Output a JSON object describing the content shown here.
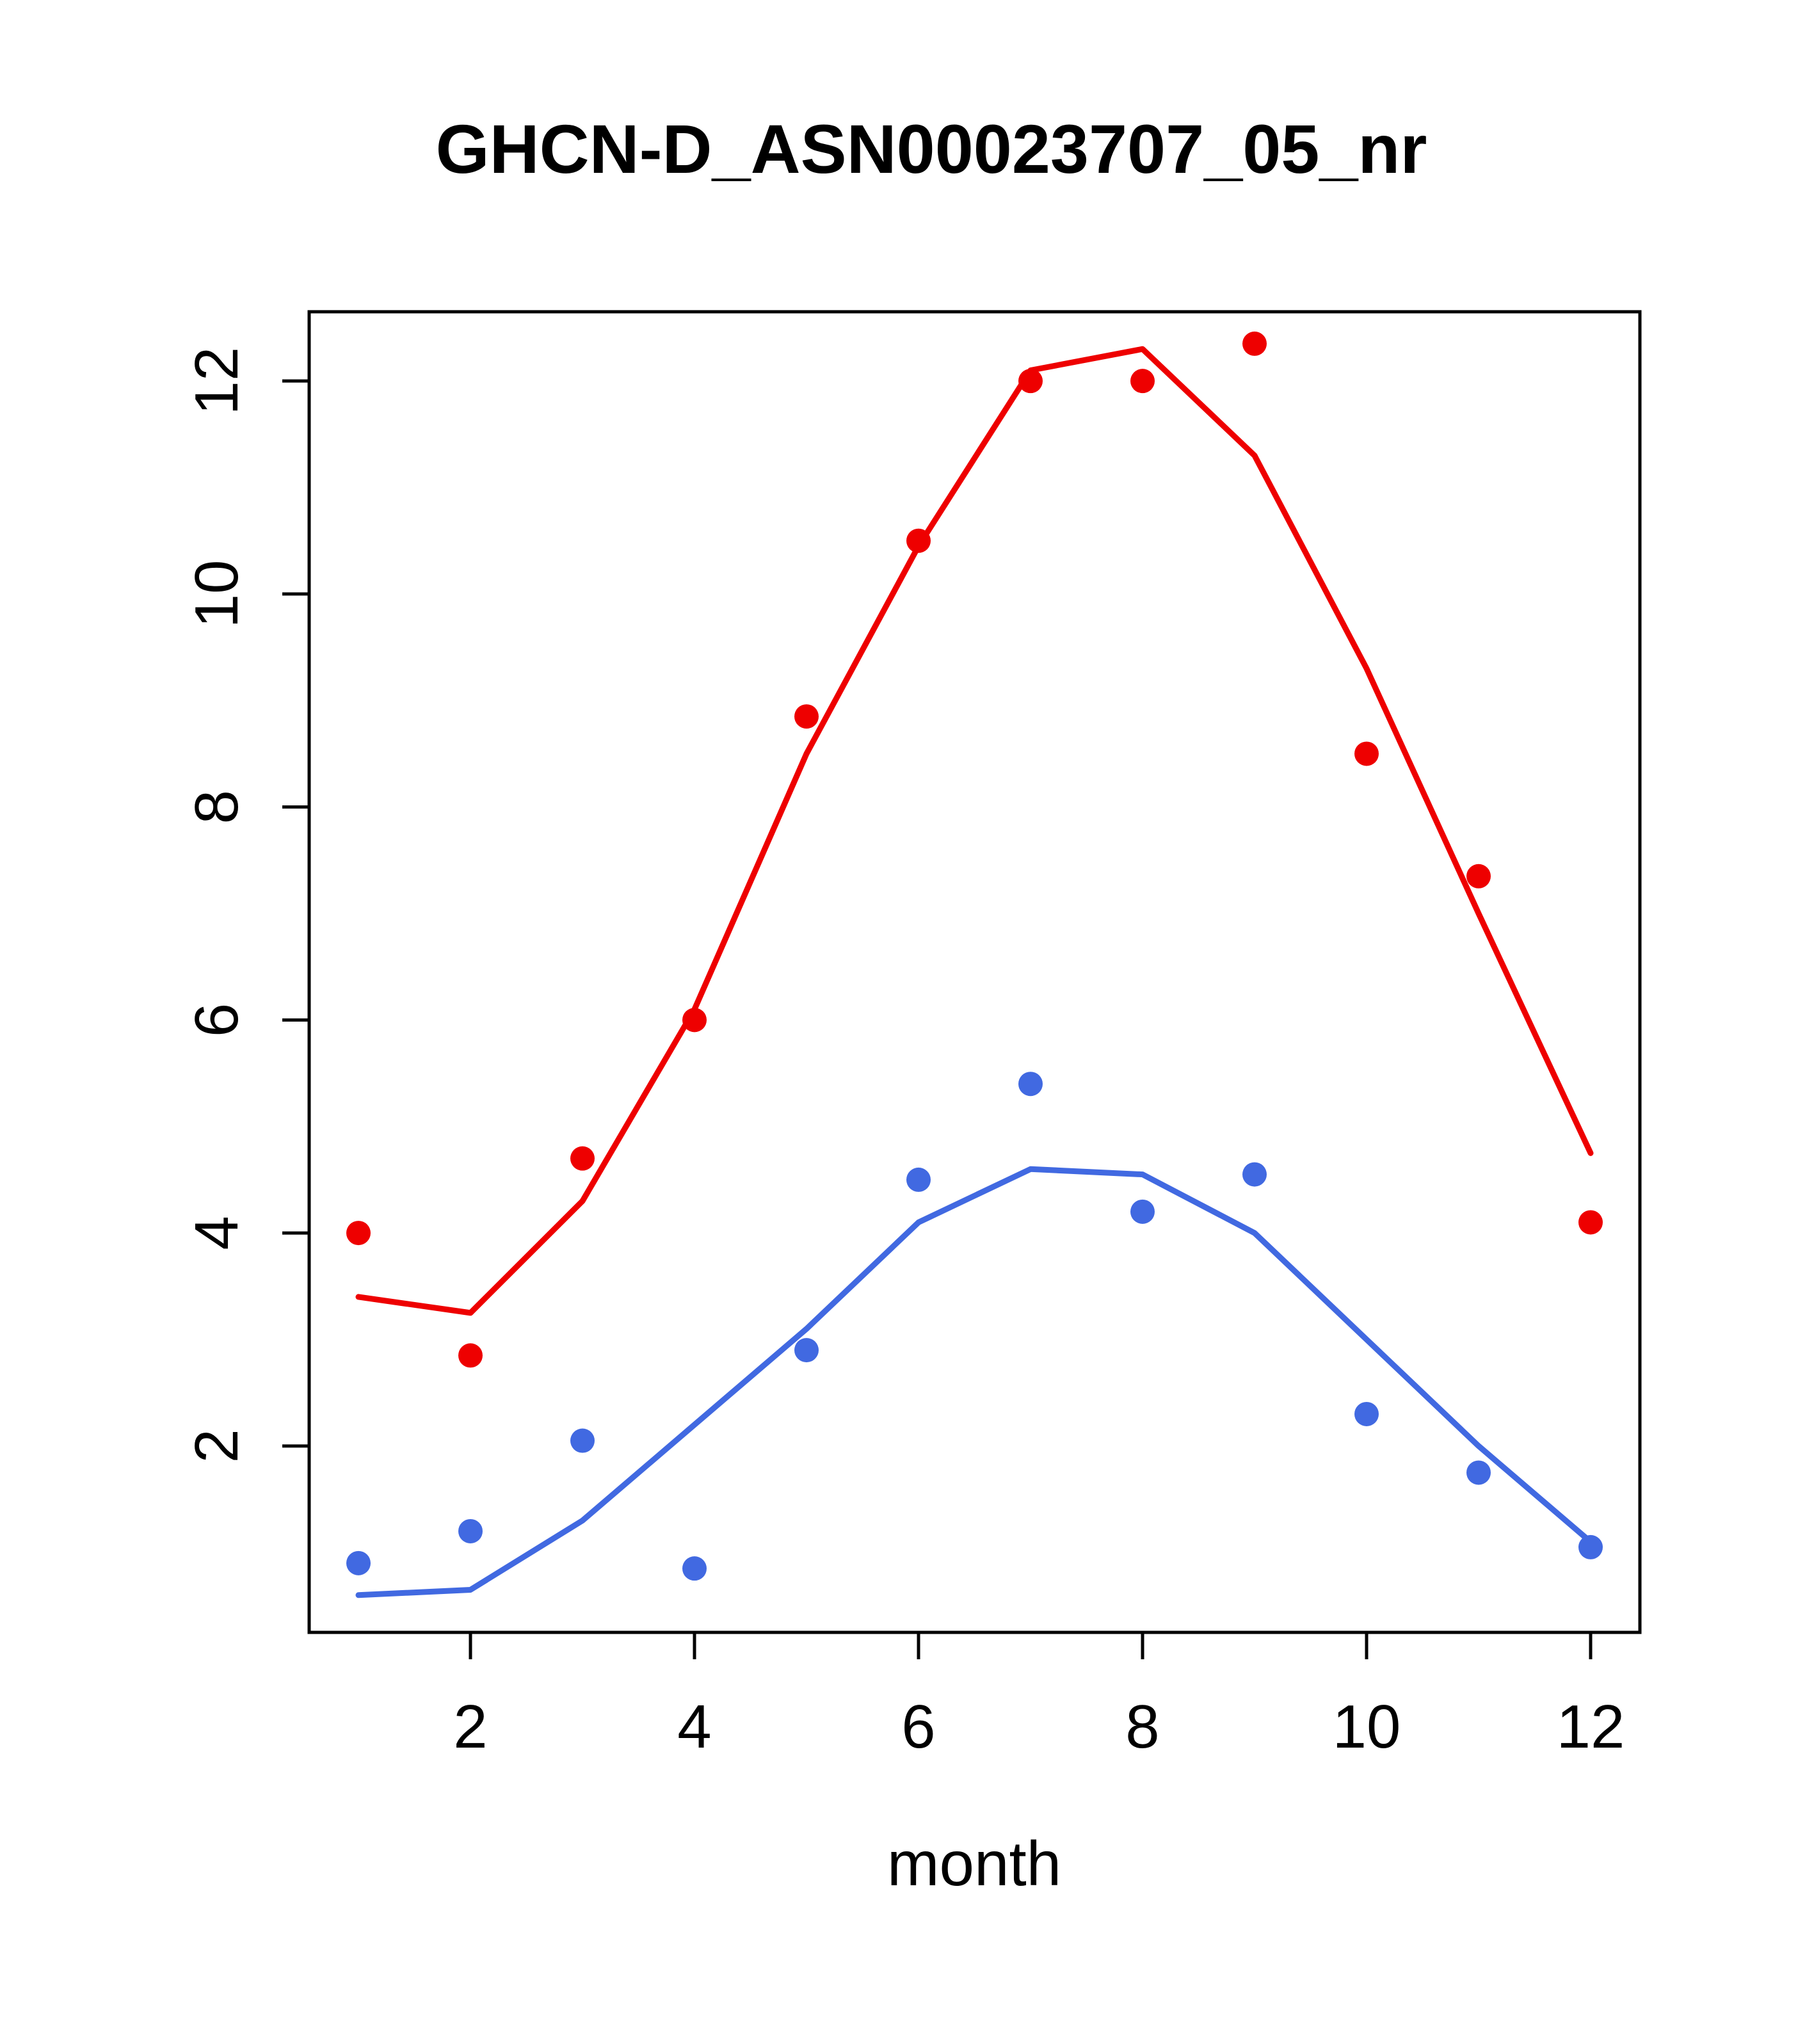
{
  "chart_data": {
    "type": "line",
    "title": "GHCN-D_ASN00023707_05_nr",
    "xlabel": "month",
    "ylabel": "",
    "x": [
      1,
      2,
      3,
      4,
      5,
      6,
      7,
      8,
      9,
      10,
      11,
      12
    ],
    "xlim": [
      0.56,
      12.44
    ],
    "ylim": [
      0.25,
      12.65
    ],
    "xticks": [
      2,
      4,
      6,
      8,
      10,
      12
    ],
    "yticks": [
      2,
      4,
      6,
      8,
      10,
      12
    ],
    "grid": false,
    "legend": "none",
    "colors": {
      "red": "#EE0000",
      "blue": "#4169E1",
      "axis": "#000000",
      "background": "#FFFFFF"
    },
    "series": [
      {
        "name": "red-points",
        "kind": "scatter",
        "color": "#EE0000",
        "values": [
          4.0,
          2.85,
          4.7,
          6.0,
          8.85,
          10.5,
          12.0,
          12.0,
          12.35,
          8.5,
          7.35,
          4.1
        ]
      },
      {
        "name": "red-smooth",
        "kind": "line",
        "color": "#EE0000",
        "values": [
          3.4,
          3.25,
          4.3,
          6.1,
          8.5,
          10.45,
          12.1,
          12.3,
          11.3,
          9.3,
          7.0,
          4.75
        ]
      },
      {
        "name": "blue-points",
        "kind": "scatter",
        "color": "#4169E1",
        "values": [
          0.9,
          1.2,
          2.05,
          0.85,
          2.9,
          4.5,
          5.4,
          4.2,
          4.55,
          2.3,
          1.75,
          1.05
        ]
      },
      {
        "name": "blue-smooth",
        "kind": "line",
        "color": "#4169E1",
        "values": [
          0.6,
          0.65,
          1.3,
          2.2,
          3.1,
          4.1,
          4.6,
          4.55,
          4.0,
          3.0,
          2.0,
          1.1
        ]
      }
    ]
  }
}
